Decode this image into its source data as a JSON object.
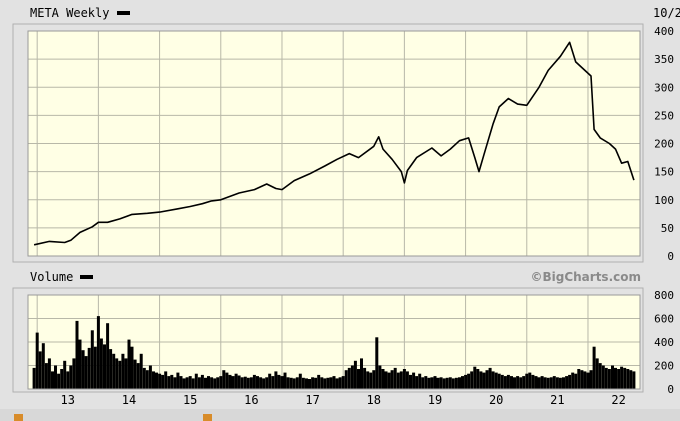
{
  "chart_data": {
    "type": "line",
    "title": "META Weekly",
    "date_fragment": "10/2",
    "watermark": "©BigCharts.com",
    "x_tick_labels": [
      "13",
      "14",
      "15",
      "16",
      "17",
      "18",
      "19",
      "20",
      "21",
      "22"
    ],
    "price": {
      "ylim": [
        0,
        400
      ],
      "y_ticks": [
        0,
        50,
        100,
        150,
        200,
        250,
        300,
        350,
        400
      ],
      "points": [
        [
          2012.95,
          20
        ],
        [
          2013.2,
          26
        ],
        [
          2013.45,
          24
        ],
        [
          2013.55,
          28
        ],
        [
          2013.7,
          42
        ],
        [
          2013.9,
          52
        ],
        [
          2014.0,
          60
        ],
        [
          2014.15,
          60
        ],
        [
          2014.35,
          66
        ],
        [
          2014.55,
          74
        ],
        [
          2014.8,
          76
        ],
        [
          2015.0,
          78
        ],
        [
          2015.3,
          84
        ],
        [
          2015.5,
          88
        ],
        [
          2015.7,
          93
        ],
        [
          2015.85,
          98
        ],
        [
          2016.0,
          100
        ],
        [
          2016.1,
          104
        ],
        [
          2016.3,
          112
        ],
        [
          2016.55,
          118
        ],
        [
          2016.75,
          128
        ],
        [
          2016.9,
          120
        ],
        [
          2017.0,
          118
        ],
        [
          2017.2,
          134
        ],
        [
          2017.45,
          146
        ],
        [
          2017.7,
          160
        ],
        [
          2017.9,
          172
        ],
        [
          2018.1,
          182
        ],
        [
          2018.25,
          175
        ],
        [
          2018.5,
          195
        ],
        [
          2018.58,
          212
        ],
        [
          2018.65,
          190
        ],
        [
          2018.8,
          172
        ],
        [
          2018.95,
          150
        ],
        [
          2019.0,
          130
        ],
        [
          2019.05,
          152
        ],
        [
          2019.2,
          175
        ],
        [
          2019.45,
          192
        ],
        [
          2019.6,
          178
        ],
        [
          2019.75,
          190
        ],
        [
          2019.9,
          205
        ],
        [
          2020.05,
          210
        ],
        [
          2020.15,
          175
        ],
        [
          2020.22,
          150
        ],
        [
          2020.3,
          180
        ],
        [
          2020.45,
          235
        ],
        [
          2020.55,
          265
        ],
        [
          2020.7,
          280
        ],
        [
          2020.85,
          270
        ],
        [
          2021.0,
          268
        ],
        [
          2021.2,
          300
        ],
        [
          2021.35,
          330
        ],
        [
          2021.55,
          355
        ],
        [
          2021.7,
          380
        ],
        [
          2021.8,
          345
        ],
        [
          2021.95,
          330
        ],
        [
          2022.05,
          320
        ],
        [
          2022.1,
          225
        ],
        [
          2022.2,
          210
        ],
        [
          2022.35,
          200
        ],
        [
          2022.45,
          190
        ],
        [
          2022.55,
          165
        ],
        [
          2022.65,
          168
        ],
        [
          2022.75,
          135
        ]
      ]
    },
    "volume": {
      "ylim": [
        0,
        800
      ],
      "y_ticks": [
        0,
        200,
        400,
        600,
        800
      ],
      "bars": [
        [
          2012.95,
          180
        ],
        [
          2013.0,
          480
        ],
        [
          2013.05,
          320
        ],
        [
          2013.1,
          390
        ],
        [
          2013.15,
          220
        ],
        [
          2013.2,
          260
        ],
        [
          2013.25,
          150
        ],
        [
          2013.3,
          200
        ],
        [
          2013.35,
          130
        ],
        [
          2013.4,
          170
        ],
        [
          2013.45,
          240
        ],
        [
          2013.5,
          150
        ],
        [
          2013.55,
          200
        ],
        [
          2013.6,
          260
        ],
        [
          2013.65,
          580
        ],
        [
          2013.7,
          420
        ],
        [
          2013.75,
          330
        ],
        [
          2013.8,
          280
        ],
        [
          2013.85,
          350
        ],
        [
          2013.9,
          500
        ],
        [
          2013.95,
          360
        ],
        [
          2014.0,
          620
        ],
        [
          2014.05,
          430
        ],
        [
          2014.1,
          380
        ],
        [
          2014.15,
          560
        ],
        [
          2014.2,
          340
        ],
        [
          2014.25,
          300
        ],
        [
          2014.3,
          260
        ],
        [
          2014.35,
          240
        ],
        [
          2014.4,
          300
        ],
        [
          2014.45,
          260
        ],
        [
          2014.5,
          420
        ],
        [
          2014.55,
          360
        ],
        [
          2014.6,
          250
        ],
        [
          2014.65,
          220
        ],
        [
          2014.7,
          300
        ],
        [
          2014.75,
          180
        ],
        [
          2014.8,
          160
        ],
        [
          2014.85,
          200
        ],
        [
          2014.9,
          150
        ],
        [
          2014.95,
          140
        ],
        [
          2015.0,
          130
        ],
        [
          2015.05,
          120
        ],
        [
          2015.1,
          150
        ],
        [
          2015.15,
          110
        ],
        [
          2015.2,
          120
        ],
        [
          2015.25,
          100
        ],
        [
          2015.3,
          140
        ],
        [
          2015.35,
          110
        ],
        [
          2015.4,
          90
        ],
        [
          2015.45,
          100
        ],
        [
          2015.5,
          110
        ],
        [
          2015.55,
          90
        ],
        [
          2015.6,
          130
        ],
        [
          2015.65,
          100
        ],
        [
          2015.7,
          120
        ],
        [
          2015.75,
          95
        ],
        [
          2015.8,
          110
        ],
        [
          2015.85,
          100
        ],
        [
          2015.9,
          90
        ],
        [
          2015.95,
          100
        ],
        [
          2016.0,
          110
        ],
        [
          2016.05,
          160
        ],
        [
          2016.1,
          140
        ],
        [
          2016.15,
          120
        ],
        [
          2016.2,
          110
        ],
        [
          2016.25,
          130
        ],
        [
          2016.3,
          115
        ],
        [
          2016.35,
          100
        ],
        [
          2016.4,
          105
        ],
        [
          2016.45,
          95
        ],
        [
          2016.5,
          100
        ],
        [
          2016.55,
          120
        ],
        [
          2016.6,
          110
        ],
        [
          2016.65,
          100
        ],
        [
          2016.7,
          90
        ],
        [
          2016.75,
          100
        ],
        [
          2016.8,
          130
        ],
        [
          2016.85,
          110
        ],
        [
          2016.9,
          150
        ],
        [
          2016.95,
          120
        ],
        [
          2017.0,
          110
        ],
        [
          2017.05,
          140
        ],
        [
          2017.1,
          100
        ],
        [
          2017.15,
          95
        ],
        [
          2017.2,
          90
        ],
        [
          2017.25,
          100
        ],
        [
          2017.3,
          130
        ],
        [
          2017.35,
          95
        ],
        [
          2017.4,
          90
        ],
        [
          2017.45,
          85
        ],
        [
          2017.5,
          100
        ],
        [
          2017.55,
          95
        ],
        [
          2017.6,
          120
        ],
        [
          2017.65,
          100
        ],
        [
          2017.7,
          90
        ],
        [
          2017.75,
          95
        ],
        [
          2017.8,
          100
        ],
        [
          2017.85,
          110
        ],
        [
          2017.9,
          90
        ],
        [
          2017.95,
          100
        ],
        [
          2018.0,
          110
        ],
        [
          2018.05,
          160
        ],
        [
          2018.1,
          180
        ],
        [
          2018.15,
          200
        ],
        [
          2018.2,
          240
        ],
        [
          2018.25,
          170
        ],
        [
          2018.3,
          260
        ],
        [
          2018.35,
          180
        ],
        [
          2018.4,
          150
        ],
        [
          2018.45,
          140
        ],
        [
          2018.5,
          160
        ],
        [
          2018.55,
          440
        ],
        [
          2018.6,
          200
        ],
        [
          2018.65,
          170
        ],
        [
          2018.7,
          150
        ],
        [
          2018.75,
          140
        ],
        [
          2018.8,
          160
        ],
        [
          2018.85,
          180
        ],
        [
          2018.9,
          140
        ],
        [
          2018.95,
          150
        ],
        [
          2019.0,
          170
        ],
        [
          2019.05,
          150
        ],
        [
          2019.1,
          120
        ],
        [
          2019.15,
          140
        ],
        [
          2019.2,
          110
        ],
        [
          2019.25,
          130
        ],
        [
          2019.3,
          100
        ],
        [
          2019.35,
          110
        ],
        [
          2019.4,
          95
        ],
        [
          2019.45,
          100
        ],
        [
          2019.5,
          110
        ],
        [
          2019.55,
          95
        ],
        [
          2019.6,
          100
        ],
        [
          2019.65,
          90
        ],
        [
          2019.7,
          95
        ],
        [
          2019.75,
          100
        ],
        [
          2019.8,
          90
        ],
        [
          2019.85,
          95
        ],
        [
          2019.9,
          100
        ],
        [
          2019.95,
          110
        ],
        [
          2020.0,
          120
        ],
        [
          2020.05,
          130
        ],
        [
          2020.1,
          150
        ],
        [
          2020.15,
          190
        ],
        [
          2020.2,
          170
        ],
        [
          2020.25,
          150
        ],
        [
          2020.3,
          140
        ],
        [
          2020.35,
          160
        ],
        [
          2020.4,
          180
        ],
        [
          2020.45,
          150
        ],
        [
          2020.5,
          140
        ],
        [
          2020.55,
          130
        ],
        [
          2020.6,
          120
        ],
        [
          2020.65,
          110
        ],
        [
          2020.7,
          120
        ],
        [
          2020.75,
          110
        ],
        [
          2020.8,
          100
        ],
        [
          2020.85,
          110
        ],
        [
          2020.9,
          100
        ],
        [
          2020.95,
          110
        ],
        [
          2021.0,
          130
        ],
        [
          2021.05,
          140
        ],
        [
          2021.1,
          120
        ],
        [
          2021.15,
          110
        ],
        [
          2021.2,
          100
        ],
        [
          2021.25,
          110
        ],
        [
          2021.3,
          100
        ],
        [
          2021.35,
          95
        ],
        [
          2021.4,
          100
        ],
        [
          2021.45,
          110
        ],
        [
          2021.5,
          100
        ],
        [
          2021.55,
          95
        ],
        [
          2021.6,
          100
        ],
        [
          2021.65,
          110
        ],
        [
          2021.7,
          120
        ],
        [
          2021.75,
          140
        ],
        [
          2021.8,
          130
        ],
        [
          2021.85,
          170
        ],
        [
          2021.9,
          160
        ],
        [
          2021.95,
          150
        ],
        [
          2022.0,
          140
        ],
        [
          2022.05,
          160
        ],
        [
          2022.1,
          360
        ],
        [
          2022.15,
          260
        ],
        [
          2022.2,
          220
        ],
        [
          2022.25,
          200
        ],
        [
          2022.3,
          180
        ],
        [
          2022.35,
          170
        ],
        [
          2022.4,
          200
        ],
        [
          2022.45,
          180
        ],
        [
          2022.5,
          170
        ],
        [
          2022.55,
          190
        ],
        [
          2022.6,
          180
        ],
        [
          2022.65,
          170
        ],
        [
          2022.7,
          160
        ],
        [
          2022.75,
          150
        ]
      ]
    }
  }
}
